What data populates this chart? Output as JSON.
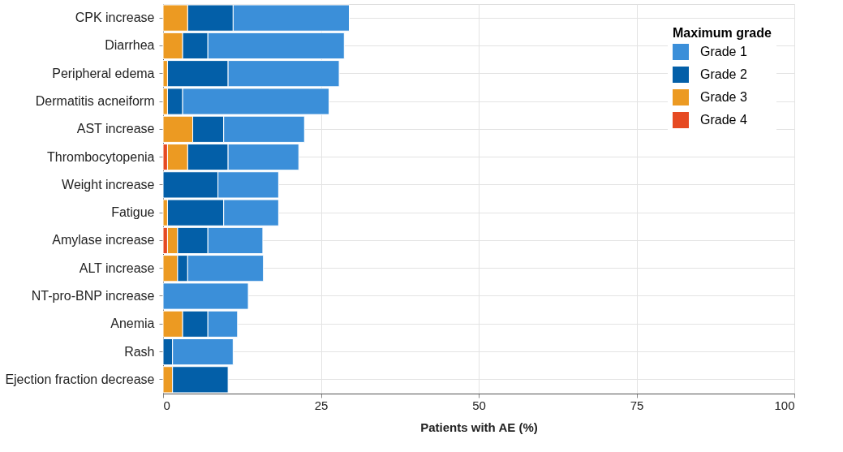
{
  "chart_data": {
    "type": "bar",
    "orientation": "horizontal",
    "stacked": true,
    "xlabel": "Patients with AE (%)",
    "legend_title": "Maximum grade",
    "legend": "top right",
    "grid": true,
    "categories": [
      "CPK increase",
      "Diarrhea",
      "Peripheral edema",
      "Dermatitis acneiform",
      "AST increase",
      "Thrombocytopenia",
      "Weight increase",
      "Fatigue",
      "Amylase increase",
      "ALT increase",
      "NT-pro-BNP increase",
      "Anemia",
      "Rash",
      "Ejection fraction decrease"
    ],
    "xlim": [
      0,
      100
    ],
    "xticks": [
      0,
      25,
      50,
      75,
      100
    ],
    "series": [
      {
        "name": "Grade 4",
        "color": "#e64a22",
        "values": [
          null,
          null,
          null,
          null,
          null,
          0.7,
          null,
          null,
          0.7,
          null,
          null,
          null,
          null,
          null
        ]
      },
      {
        "name": "Grade 3",
        "color": "#ec9a22",
        "values": [
          3.9,
          3.1,
          0.7,
          0.7,
          4.7,
          3.2,
          null,
          0.7,
          1.6,
          2.3,
          null,
          3.1,
          null,
          1.5
        ]
      },
      {
        "name": "Grade 2",
        "color": "#035fa8",
        "values": [
          7.2,
          4.0,
          9.6,
          2.4,
          4.9,
          6.4,
          8.7,
          8.9,
          4.8,
          1.6,
          null,
          4.0,
          1.5,
          8.8
        ]
      },
      {
        "name": "Grade 1",
        "color": "#3b8fd9",
        "values": [
          18.4,
          21.6,
          17.6,
          23.2,
          12.8,
          11.2,
          9.6,
          8.7,
          8.7,
          12.0,
          13.5,
          4.7,
          9.6,
          null
        ]
      }
    ]
  }
}
